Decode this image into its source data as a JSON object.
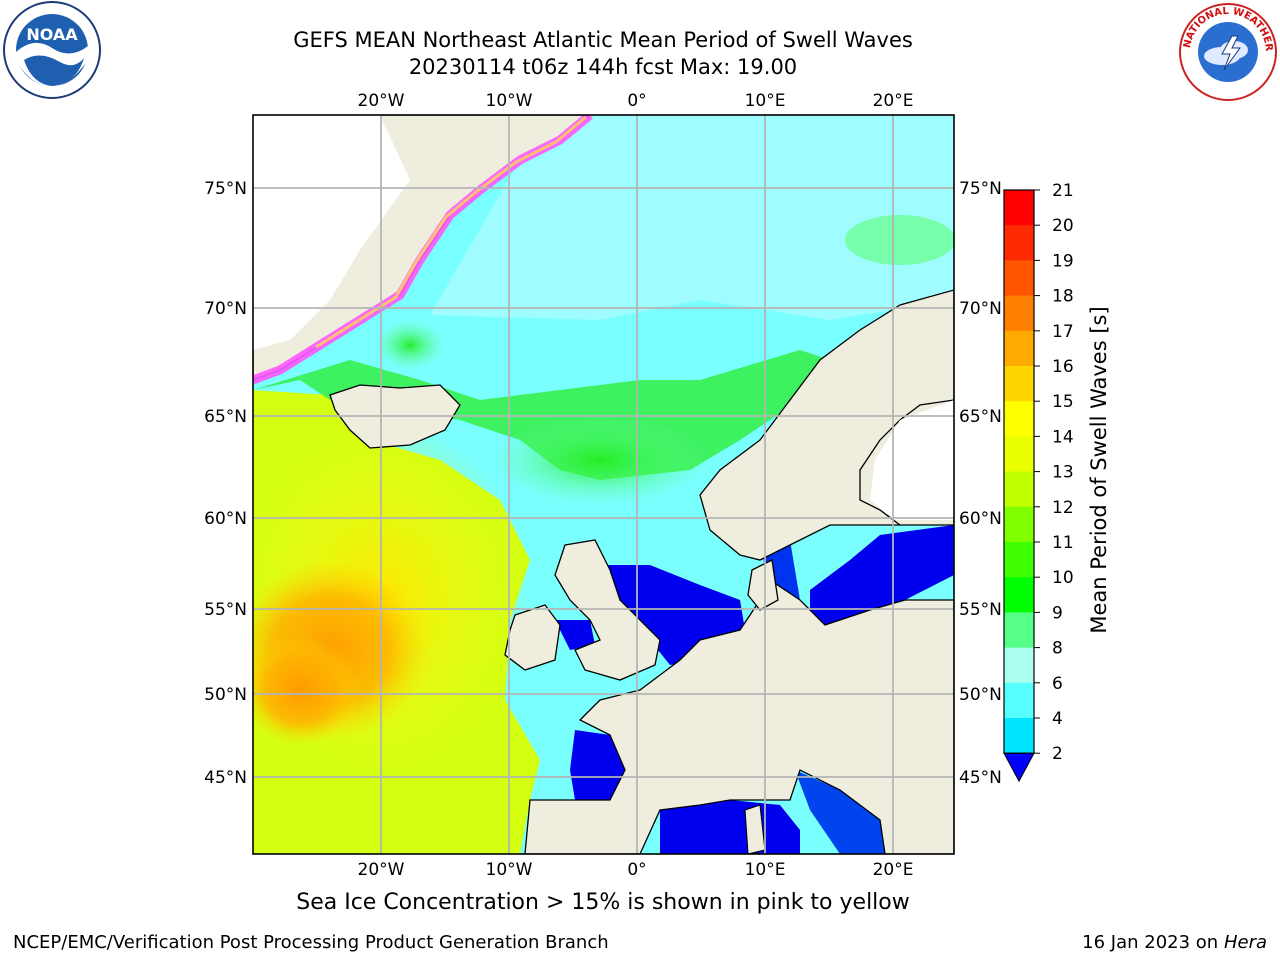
{
  "title_line1": "GEFS MEAN Northeast Atlantic Mean Period of Swell Waves",
  "title_line2": "20230114 t06z 144h fcst   Max: 19.00",
  "top_lon_labels": [
    "20°W",
    "10°W",
    "0°",
    "10°E",
    "20°E"
  ],
  "bottom_lon_labels": [
    "20°W",
    "10°W",
    "0°",
    "10°E",
    "20°E"
  ],
  "left_lat_labels": [
    "75°N",
    "70°N",
    "65°N",
    "60°N",
    "55°N",
    "50°N",
    "45°N"
  ],
  "right_lat_labels": [
    "75°N",
    "70°N",
    "65°N",
    "60°N",
    "55°N",
    "50°N",
    "45°N"
  ],
  "colorbar": {
    "label": "Mean Period of Swell Waves [s]",
    "ticks": [
      "21",
      "20",
      "19",
      "18",
      "17",
      "16",
      "15",
      "14",
      "13",
      "12",
      "11",
      "10",
      "9",
      "8",
      "6",
      "4",
      "2"
    ],
    "colors": [
      "#ff0000",
      "#ff2a00",
      "#ff5500",
      "#ff8000",
      "#ffaa00",
      "#ffd500",
      "#ffff00",
      "#eaff00",
      "#bfff00",
      "#80ff00",
      "#40ff00",
      "#00ff00",
      "#55ff88",
      "#aaffee",
      "#55ffff",
      "#00e5ff",
      "#0080ff"
    ],
    "extend_color": "#0000ff"
  },
  "ice_note": "Sea Ice Concentration > 15% is shown in pink to yellow",
  "footer_left": "NCEP/EMC/Verification Post Processing Product Generation Branch",
  "footer_right_prefix": "16 Jan 2023 on ",
  "footer_right_host": "Hera",
  "logos": {
    "left": "NOAA",
    "right": "NATIONAL WEATHER SERVICE"
  },
  "colors": {
    "land": "#efedde",
    "grid": "#b4b4b4",
    "ocean_base": "#88ffff",
    "ice": "#ff55ff"
  }
}
